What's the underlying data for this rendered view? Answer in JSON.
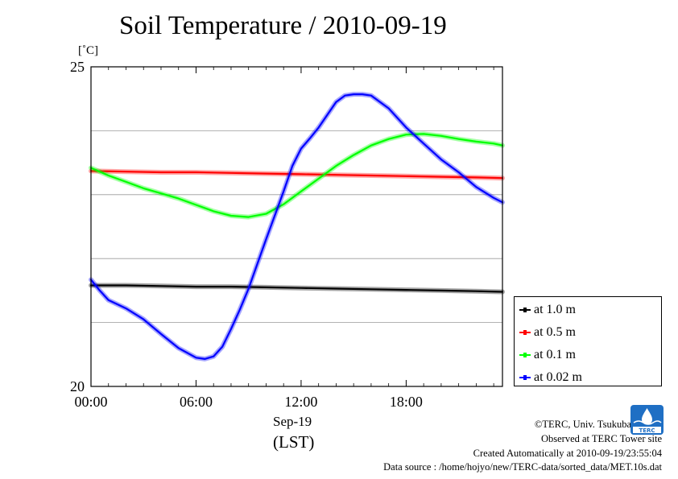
{
  "title": "Soil Temperature / 2010-09-19",
  "y_unit": "[˚C]",
  "x_date_label": "Sep-19",
  "x_zone_label": "(LST)",
  "credits": {
    "copyright": "©TERC, Univ. Tsukuba",
    "site": "Observed at TERC Tower site",
    "created": "Created Automatically at 2010-09-19/23:55:04",
    "source": "Data source : /home/hojyo/new/TERC-data/sorted_data/MET.10s.dat"
  },
  "logo_text": "TERC",
  "chart_data": {
    "type": "line",
    "title": "Soil Temperature / 2010-09-19",
    "ylabel": "[˚C]",
    "xlabel": "Sep-19 (LST)",
    "ylim": [
      20,
      25
    ],
    "xlim": [
      0,
      23.5
    ],
    "y_ticks": [
      20,
      25
    ],
    "y_tick_labels": [
      "20",
      "25"
    ],
    "y_gridlines": [
      21,
      22,
      23,
      24
    ],
    "x_ticks": [
      0,
      6,
      12,
      18
    ],
    "x_tick_labels": [
      "00:00",
      "06:00",
      "12:00",
      "18:00"
    ],
    "grid": true,
    "legend_position": "bottom-right-outside",
    "series": [
      {
        "name": "at 1.0 m",
        "color": "#000000",
        "x": [
          0,
          2,
          4,
          6,
          8,
          10,
          12,
          14,
          16,
          18,
          20,
          22,
          23.5
        ],
        "y": [
          21.58,
          21.58,
          21.57,
          21.56,
          21.56,
          21.55,
          21.54,
          21.53,
          21.52,
          21.51,
          21.5,
          21.49,
          21.48
        ]
      },
      {
        "name": "at 0.5 m",
        "color": "#ff0000",
        "x": [
          0,
          2,
          4,
          6,
          8,
          10,
          12,
          14,
          16,
          18,
          20,
          22,
          23.5
        ],
        "y": [
          23.37,
          23.36,
          23.35,
          23.35,
          23.34,
          23.33,
          23.32,
          23.31,
          23.3,
          23.29,
          23.28,
          23.27,
          23.26
        ]
      },
      {
        "name": "at 0.1 m",
        "color": "#00ff00",
        "x": [
          0,
          1,
          2,
          3,
          4,
          5,
          6,
          7,
          8,
          9,
          10,
          11,
          12,
          13,
          14,
          15,
          16,
          17,
          18,
          19,
          20,
          21,
          22,
          23,
          23.5
        ],
        "y": [
          23.42,
          23.3,
          23.2,
          23.1,
          23.02,
          22.94,
          22.84,
          22.74,
          22.67,
          22.65,
          22.7,
          22.85,
          23.05,
          23.25,
          23.45,
          23.62,
          23.77,
          23.87,
          23.94,
          23.95,
          23.92,
          23.87,
          23.83,
          23.8,
          23.77
        ]
      },
      {
        "name": "at 0.02 m",
        "color": "#0000ff",
        "x": [
          0,
          0.5,
          1,
          2,
          3,
          4,
          5,
          6,
          6.5,
          7,
          7.5,
          8,
          8.5,
          9,
          10,
          11,
          11.5,
          12,
          12.5,
          13,
          14,
          14.5,
          15,
          15.5,
          16,
          17,
          18,
          19,
          20,
          21,
          22,
          23,
          23.5
        ],
        "y": [
          21.67,
          21.5,
          21.35,
          21.22,
          21.05,
          20.82,
          20.6,
          20.45,
          20.43,
          20.47,
          20.62,
          20.9,
          21.2,
          21.53,
          22.3,
          23.05,
          23.45,
          23.72,
          23.88,
          24.05,
          24.45,
          24.55,
          24.57,
          24.57,
          24.55,
          24.35,
          24.05,
          23.8,
          23.55,
          23.35,
          23.12,
          22.95,
          22.88
        ]
      }
    ]
  }
}
